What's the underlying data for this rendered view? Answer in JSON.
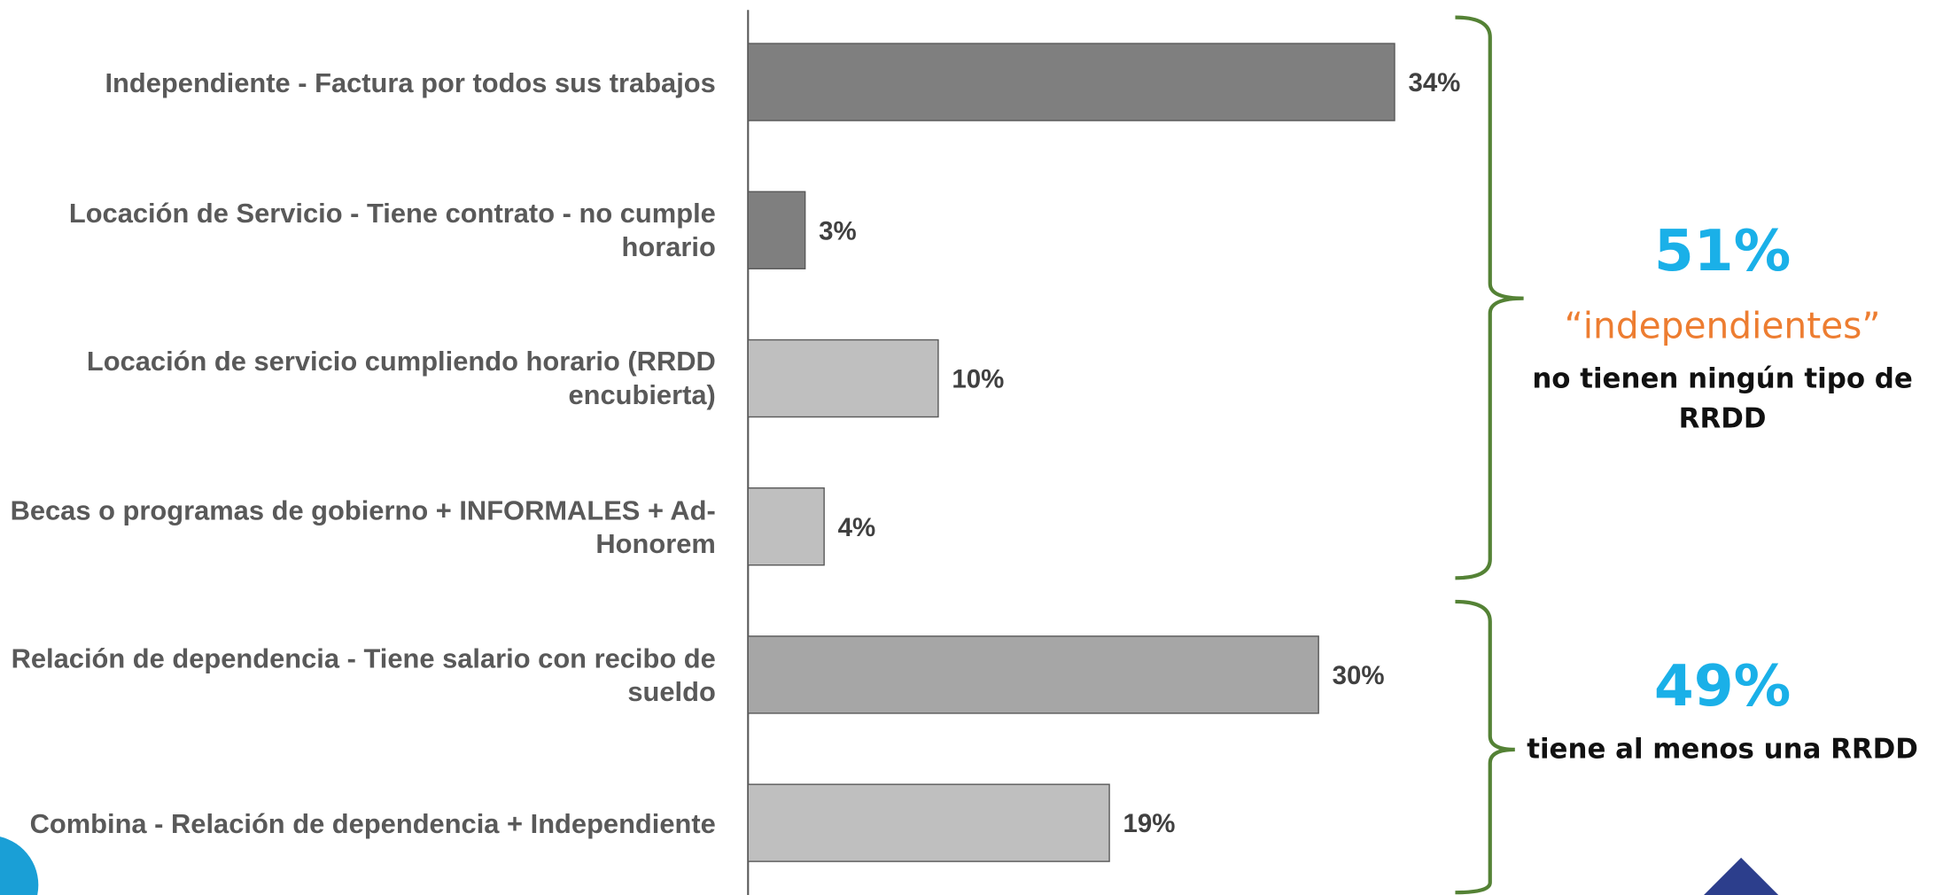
{
  "chart_data": {
    "type": "barh",
    "categories": [
      "Independiente - Factura por todos sus trabajos",
      "Locación de Servicio - Tiene contrato - no cumple horario",
      "Locación de servicio cumpliendo horario (RRDD encubierta)",
      "Becas o programas de gobierno + INFORMALES + Ad-Honorem",
      "Relación de dependencia - Tiene salario con recibo de sueldo",
      "Combina - Relación de dependencia + Independiente"
    ],
    "values": [
      34,
      3,
      10,
      4,
      30,
      19
    ],
    "value_labels": [
      "34%",
      "3%",
      "10%",
      "4%",
      "30%",
      "19%"
    ],
    "colors": [
      "#7f7f7f",
      "#7f7f7f",
      "#bfbfbf",
      "#bfbfbf",
      "#a6a6a6",
      "#bfbfbf"
    ],
    "xlim": [
      0,
      40
    ],
    "annotations": [
      {
        "big": "51%",
        "accent": "“independientes”",
        "text": "no tienen ningún tipo de RRDD"
      },
      {
        "big": "49%",
        "text": "tiene al menos una RRDD"
      }
    ]
  }
}
